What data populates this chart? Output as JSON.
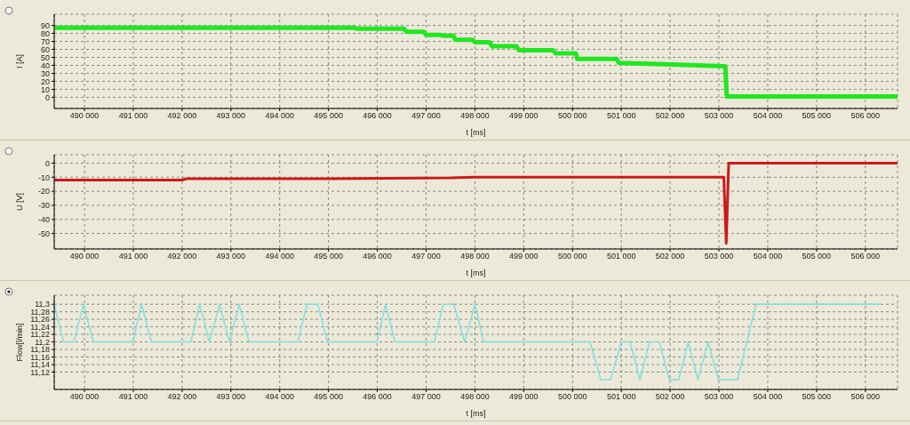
{
  "chart_data": [
    {
      "type": "line",
      "xlabel": "t [ms]",
      "ylabel": "I [A]",
      "color": "#22e622",
      "grid": true,
      "x": [
        489380,
        495500,
        495600,
        496550,
        496600,
        496950,
        497000,
        497300,
        497350,
        497560,
        497600,
        497950,
        498000,
        498300,
        498350,
        498850,
        498900,
        499600,
        499650,
        500070,
        500100,
        500900,
        500950,
        503130,
        503160,
        506660
      ],
      "values": [
        87,
        87,
        86,
        86,
        82,
        82,
        78,
        78,
        77,
        77,
        72,
        72,
        69,
        69,
        64,
        64,
        59,
        59,
        55,
        55,
        48,
        48,
        43,
        39,
        1,
        1
      ],
      "xlim": [
        489380,
        506660
      ],
      "ylim": [
        -14,
        104
      ],
      "yticks": [
        0,
        10,
        20,
        30,
        40,
        50,
        60,
        70,
        80,
        90
      ],
      "xticks": [
        {
          "value": 490000,
          "label": "490 000"
        },
        {
          "value": 491000,
          "label": "491 000"
        },
        {
          "value": 492000,
          "label": "492 000"
        },
        {
          "value": 493000,
          "label": "493 000"
        },
        {
          "value": 494000,
          "label": "494 000"
        },
        {
          "value": 495000,
          "label": "495 000"
        },
        {
          "value": 496000,
          "label": "496 000"
        },
        {
          "value": 497000,
          "label": "497 000"
        },
        {
          "value": 498000,
          "label": "498 000"
        },
        {
          "value": 499000,
          "label": "499 000"
        },
        {
          "value": 500000,
          "label": "500 000"
        },
        {
          "value": 501000,
          "label": "501 000"
        },
        {
          "value": 502000,
          "label": "502 000"
        },
        {
          "value": 503000,
          "label": "503 000"
        },
        {
          "value": 504000,
          "label": "504 000"
        },
        {
          "value": 505000,
          "label": "505 000"
        },
        {
          "value": 506000,
          "label": "506 000"
        }
      ]
    },
    {
      "type": "line",
      "xlabel": "t [ms]",
      "ylabel": "U [V]",
      "color": "#cc1a1a",
      "grid": true,
      "x": [
        489380,
        492000,
        492100,
        495000,
        497500,
        498000,
        503100,
        503150,
        503200,
        506660
      ],
      "values": [
        -12,
        -12,
        -11,
        -11,
        -10.5,
        -10,
        -10,
        -57,
        0,
        0
      ],
      "xlim": [
        489380,
        506660
      ],
      "ylim": [
        -61,
        6
      ],
      "yticks": [
        -50,
        -40,
        -30,
        -20,
        -10,
        0
      ],
      "xticks": [
        {
          "value": 490000,
          "label": "490 000"
        },
        {
          "value": 491000,
          "label": "491 000"
        },
        {
          "value": 492000,
          "label": "492 000"
        },
        {
          "value": 493000,
          "label": "493 000"
        },
        {
          "value": 494000,
          "label": "494 000"
        },
        {
          "value": 495000,
          "label": "495 000"
        },
        {
          "value": 496000,
          "label": "496 000"
        },
        {
          "value": 497000,
          "label": "497 000"
        },
        {
          "value": 498000,
          "label": "498 000"
        },
        {
          "value": 499000,
          "label": "499 000"
        },
        {
          "value": 500000,
          "label": "500 000"
        },
        {
          "value": 501000,
          "label": "501 000"
        },
        {
          "value": 502000,
          "label": "502 000"
        },
        {
          "value": 503000,
          "label": "503 000"
        },
        {
          "value": 504000,
          "label": "504 000"
        },
        {
          "value": 505000,
          "label": "505 000"
        },
        {
          "value": 506000,
          "label": "506 000"
        }
      ]
    },
    {
      "type": "line",
      "xlabel": "t [ms]",
      "ylabel": "Flow[l/min]",
      "color": "#7fe0e0",
      "grid": true,
      "x": [
        489380,
        489570,
        489780,
        489980,
        490180,
        490990,
        491170,
        491370,
        492180,
        492360,
        492560,
        492770,
        492970,
        493170,
        493370,
        494370,
        494560,
        494780,
        494980,
        495990,
        496170,
        496360,
        497170,
        497350,
        497570,
        497790,
        498000,
        498180,
        500360,
        500580,
        500780,
        501000,
        501180,
        501380,
        501580,
        501780,
        501980,
        502180,
        502370,
        502570,
        502780,
        502990,
        503380,
        503760,
        506320
      ],
      "values": [
        11.3,
        11.2,
        11.2,
        11.3,
        11.2,
        11.2,
        11.3,
        11.2,
        11.2,
        11.3,
        11.2,
        11.3,
        11.2,
        11.3,
        11.2,
        11.2,
        11.3,
        11.3,
        11.2,
        11.2,
        11.3,
        11.2,
        11.2,
        11.3,
        11.3,
        11.2,
        11.3,
        11.2,
        11.2,
        11.1,
        11.1,
        11.2,
        11.2,
        11.1,
        11.2,
        11.2,
        11.1,
        11.1,
        11.2,
        11.1,
        11.2,
        11.1,
        11.1,
        11.3,
        11.3
      ],
      "xlim": [
        489380,
        506660
      ],
      "ylim": [
        11.074,
        11.324
      ],
      "yticks": [
        {
          "value": 11.12,
          "label": "11,12"
        },
        {
          "value": 11.14,
          "label": "11,14"
        },
        {
          "value": 11.16,
          "label": "11,16"
        },
        {
          "value": 11.18,
          "label": "11,18"
        },
        {
          "value": 11.2,
          "label": "11,2"
        },
        {
          "value": 11.22,
          "label": "11,22"
        },
        {
          "value": 11.24,
          "label": "11,24"
        },
        {
          "value": 11.26,
          "label": "11,26"
        },
        {
          "value": 11.28,
          "label": "11,28"
        },
        {
          "value": 11.3,
          "label": "11,3"
        }
      ],
      "xticks": [
        {
          "value": 490000,
          "label": "490 000"
        },
        {
          "value": 491000,
          "label": "491 000"
        },
        {
          "value": 492000,
          "label": "492 000"
        },
        {
          "value": 493000,
          "label": "493 000"
        },
        {
          "value": 494000,
          "label": "494 000"
        },
        {
          "value": 495000,
          "label": "495 000"
        },
        {
          "value": 496000,
          "label": "496 000"
        },
        {
          "value": 497000,
          "label": "497 000"
        },
        {
          "value": 498000,
          "label": "498 000"
        },
        {
          "value": 499000,
          "label": "499 000"
        },
        {
          "value": 500000,
          "label": "500 000"
        },
        {
          "value": 501000,
          "label": "501 000"
        },
        {
          "value": 502000,
          "label": "502 000"
        },
        {
          "value": 503000,
          "label": "503 000"
        },
        {
          "value": 504000,
          "label": "504 000"
        },
        {
          "value": 505000,
          "label": "505 000"
        },
        {
          "value": 506000,
          "label": "506 000"
        }
      ]
    }
  ]
}
